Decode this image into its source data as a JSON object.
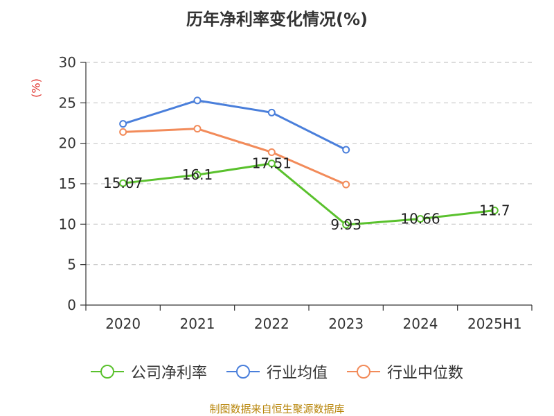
{
  "title": "历年净利率变化情况(%)",
  "y_unit_label": "(%)",
  "source_text": "制图数据来自恒生聚源数据库",
  "chart_data": {
    "type": "line",
    "title": "历年净利率变化情况(%)",
    "categories": [
      "2020",
      "2021",
      "2022",
      "2023",
      "2024",
      "2025H1"
    ],
    "ylim": [
      0,
      30
    ],
    "yticks": [
      "0",
      "5",
      "10",
      "15",
      "20",
      "25",
      "30"
    ],
    "ytick_values": [
      0,
      5,
      10,
      15,
      20,
      25,
      30
    ],
    "grid": true,
    "legend_position": "bottom",
    "series": [
      {
        "name": "公司净利率",
        "color": "#5ac12d",
        "values": [
          15.07,
          16.1,
          17.51,
          9.93,
          10.66,
          11.7
        ],
        "labels": [
          "15.07",
          "16.1",
          "17.51",
          "9.93",
          "10.66",
          "11.7"
        ]
      },
      {
        "name": "行业均值",
        "color": "#4a7fdb",
        "values": [
          22.4,
          25.3,
          23.8,
          19.2,
          null,
          null
        ]
      },
      {
        "name": "行业中位数",
        "color": "#f28b5a",
        "values": [
          21.4,
          21.8,
          18.9,
          14.9,
          null,
          null
        ]
      }
    ]
  }
}
